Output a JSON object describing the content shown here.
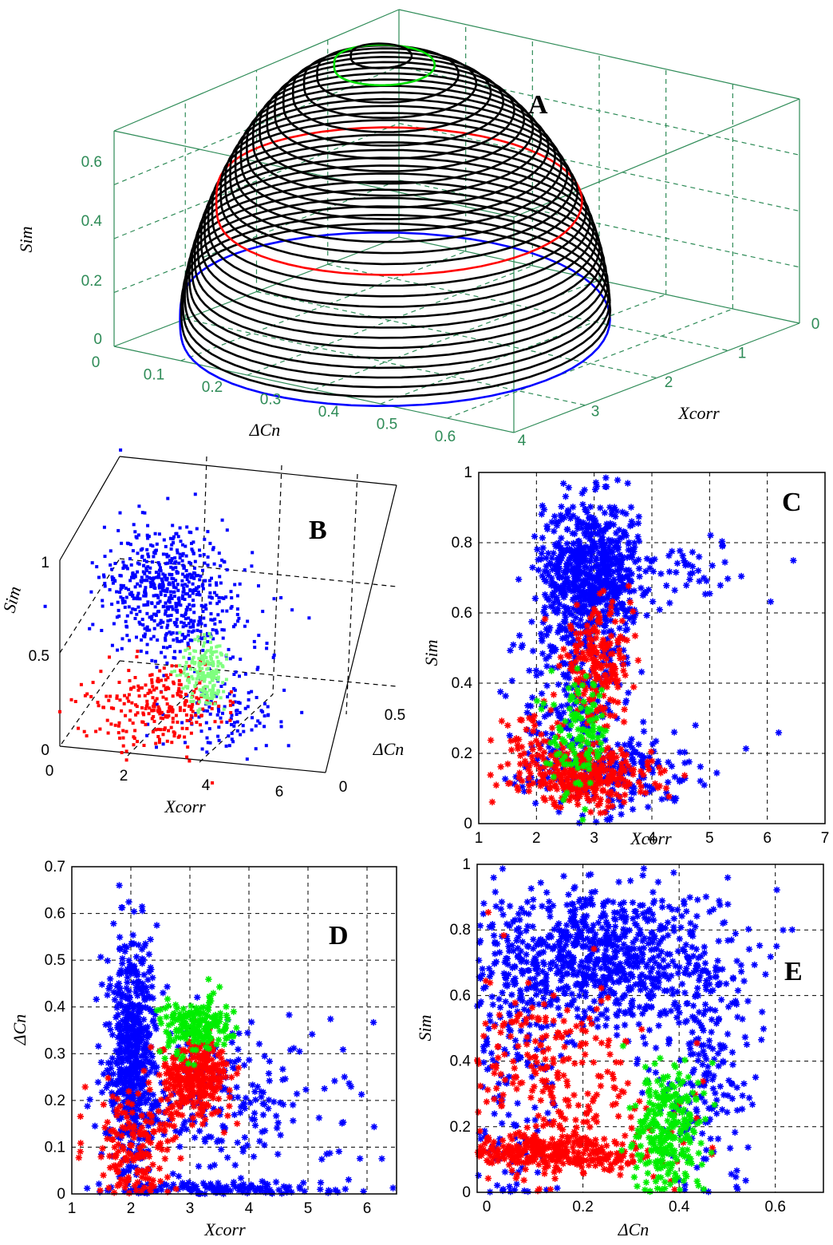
{
  "chart_data": [
    {
      "panel": "A",
      "type": "surface3d",
      "label": "A",
      "xlabel": "Xcorr",
      "ylabel": "ΔCn",
      "zlabel": "Sim",
      "xticks": [
        "0",
        "1",
        "2",
        "3",
        "4"
      ],
      "yticks": [
        "0",
        "0.1",
        "0.2",
        "0.3",
        "0.4",
        "0.5",
        "0.6"
      ],
      "zticks": [
        "0",
        "0.2",
        "0.4",
        "0.6"
      ],
      "grid": true,
      "box_color": "#2e8b57",
      "contour_color": "#000000",
      "highlight_contours": [
        {
          "color": "#ff0000",
          "sim": 0.35
        },
        {
          "color": "#00dd00",
          "sim": 0.7
        },
        {
          "color": "#0000ff",
          "sim": 0.0
        }
      ]
    },
    {
      "panel": "B",
      "type": "scatter3d",
      "label": "B",
      "xlabel": "Xcorr",
      "ylabel": "ΔCn",
      "zlabel": "Sim",
      "xticks": [
        "0",
        "2",
        "4",
        "6"
      ],
      "yticks": [
        "0",
        "0.5"
      ],
      "zticks": [
        "0",
        "0.5",
        "1"
      ],
      "grid": true,
      "series_colors": [
        "#0000ff",
        "#ff0000",
        "#7fff7f"
      ]
    },
    {
      "panel": "C",
      "type": "scatter",
      "label": "C",
      "xlabel": "Xcorr",
      "ylabel": "Sim",
      "xlim": [
        1,
        7
      ],
      "ylim": [
        0,
        1
      ],
      "xticks": [
        "1",
        "2",
        "3",
        "4",
        "5",
        "6",
        "7"
      ],
      "yticks": [
        "0",
        "0.2",
        "0.4",
        "0.6",
        "0.8",
        "1"
      ],
      "grid": true,
      "marker": "*",
      "series": [
        {
          "color": "#0000ff",
          "clusters": [
            {
              "x": 2.95,
              "y": 0.72,
              "sx": 0.42,
              "sy": 0.1,
              "n": 700
            },
            {
              "x": 2.7,
              "y": 0.4,
              "sx": 0.5,
              "sy": 0.18,
              "n": 260
            },
            {
              "x": 3.3,
              "y": 0.15,
              "sx": 0.8,
              "sy": 0.05,
              "n": 200
            },
            {
              "x": 4.8,
              "y": 0.72,
              "sx": 0.7,
              "sy": 0.05,
              "n": 40
            }
          ]
        },
        {
          "color": "#ff0000",
          "clusters": [
            {
              "x": 2.9,
              "y": 0.13,
              "sx": 0.55,
              "sy": 0.04,
              "n": 300
            },
            {
              "x": 3.05,
              "y": 0.45,
              "sx": 0.3,
              "sy": 0.08,
              "n": 200
            },
            {
              "x": 2.0,
              "y": 0.2,
              "sx": 0.35,
              "sy": 0.05,
              "n": 70
            }
          ]
        },
        {
          "color": "#00ee00",
          "clusters": [
            {
              "x": 2.75,
              "y": 0.25,
              "sx": 0.25,
              "sy": 0.08,
              "n": 120
            }
          ]
        }
      ]
    },
    {
      "panel": "D",
      "type": "scatter",
      "label": "D",
      "xlabel": "Xcorr",
      "ylabel": "ΔCn",
      "xlim": [
        1,
        6.5
      ],
      "ylim": [
        0,
        0.7
      ],
      "xticks": [
        "1",
        "2",
        "3",
        "4",
        "5",
        "6"
      ],
      "yticks": [
        "0",
        "0.1",
        "0.2",
        "0.3",
        "0.4",
        "0.5",
        "0.6",
        "0.7"
      ],
      "grid": true,
      "marker": "*",
      "series": [
        {
          "color": "#0000ff",
          "clusters": [
            {
              "x": 2.0,
              "y": 0.3,
              "sx": 0.22,
              "sy": 0.12,
              "n": 600
            },
            {
              "x": 3.5,
              "y": 0.2,
              "sx": 0.6,
              "sy": 0.08,
              "n": 160
            },
            {
              "x": 3.5,
              "y": 0.01,
              "sx": 0.9,
              "sy": 0.008,
              "n": 120
            },
            {
              "x": 5.2,
              "y": 0.2,
              "sx": 0.6,
              "sy": 0.1,
              "n": 35
            }
          ]
        },
        {
          "color": "#ff0000",
          "clusters": [
            {
              "x": 3.1,
              "y": 0.25,
              "sx": 0.3,
              "sy": 0.04,
              "n": 320
            },
            {
              "x": 2.1,
              "y": 0.1,
              "sx": 0.35,
              "sy": 0.06,
              "n": 160
            }
          ]
        },
        {
          "color": "#00ee00",
          "clusters": [
            {
              "x": 3.1,
              "y": 0.36,
              "sx": 0.3,
              "sy": 0.03,
              "n": 180
            }
          ]
        }
      ]
    },
    {
      "panel": "E",
      "type": "scatter",
      "label": "E",
      "xlabel": "ΔCn",
      "ylabel": "Sim",
      "xlim": [
        -0.02,
        0.7
      ],
      "ylim": [
        0,
        1
      ],
      "xticks": [
        "0",
        "0.2",
        "0.4",
        "0.6"
      ],
      "yticks": [
        "0",
        "0.2",
        "0.4",
        "0.6",
        "0.8",
        "1"
      ],
      "grid": true,
      "marker": "*",
      "series": [
        {
          "color": "#0000ff",
          "clusters": [
            {
              "x": 0.22,
              "y": 0.72,
              "sx": 0.14,
              "sy": 0.11,
              "n": 900
            },
            {
              "x": 0.45,
              "y": 0.35,
              "sx": 0.06,
              "sy": 0.18,
              "n": 200
            },
            {
              "x": 0.05,
              "y": 0.3,
              "sx": 0.05,
              "sy": 0.2,
              "n": 150
            }
          ]
        },
        {
          "color": "#ff0000",
          "clusters": [
            {
              "x": 0.15,
              "y": 0.12,
              "sx": 0.1,
              "sy": 0.03,
              "n": 320
            },
            {
              "x": 0.12,
              "y": 0.35,
              "sx": 0.1,
              "sy": 0.15,
              "n": 280
            }
          ]
        },
        {
          "color": "#00ee00",
          "clusters": [
            {
              "x": 0.37,
              "y": 0.2,
              "sx": 0.035,
              "sy": 0.1,
              "n": 260
            }
          ]
        }
      ]
    }
  ]
}
